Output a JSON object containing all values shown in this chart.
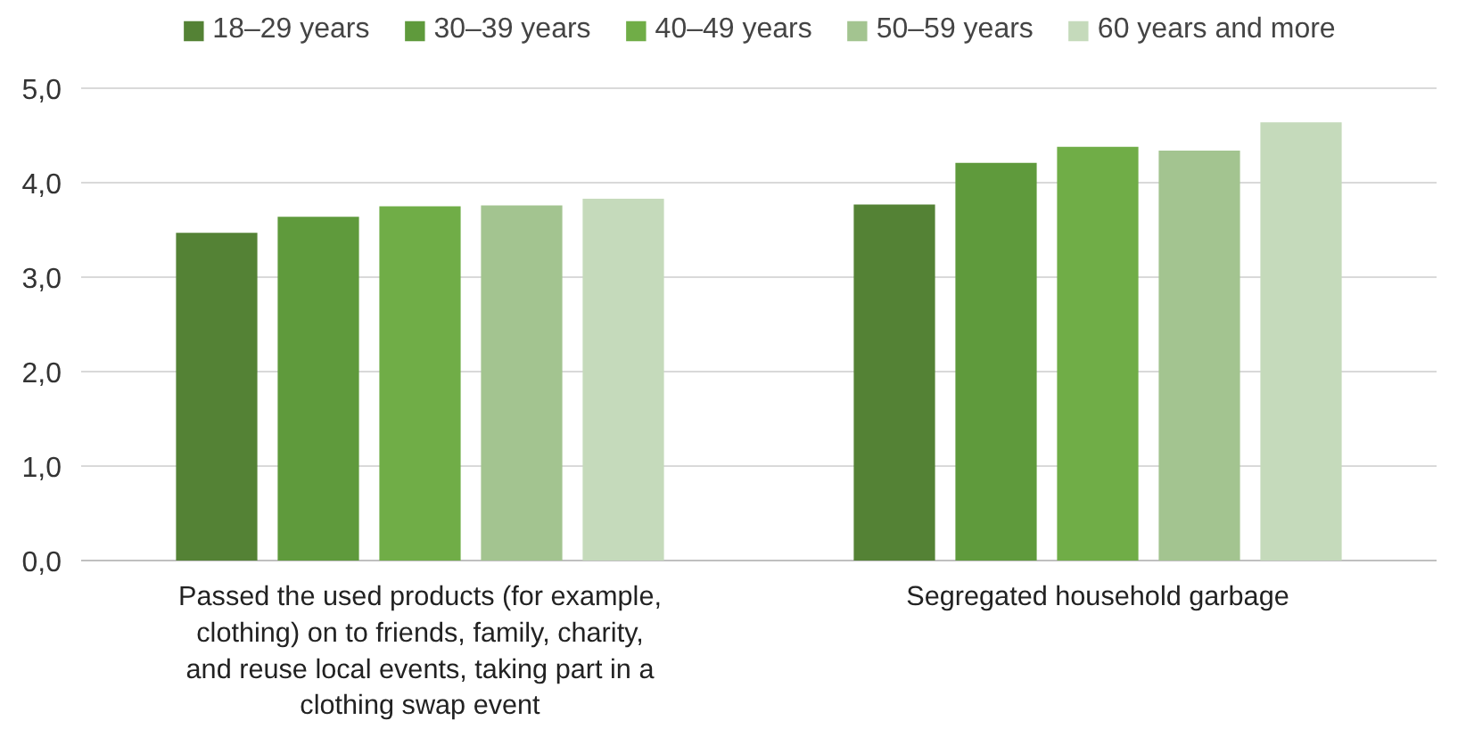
{
  "chart_data": {
    "type": "bar",
    "categories": [
      "Passed the used products (for example, clothing) on to friends, family, charity, and reuse local events, taking part in a clothing swap event",
      "Segregated household garbage"
    ],
    "series": [
      {
        "name": "18–29 years",
        "color": "#548235",
        "values": [
          3.47,
          3.77
        ]
      },
      {
        "name": "30–39 years",
        "color": "#5f9a3c",
        "values": [
          3.64,
          4.21
        ]
      },
      {
        "name": "40–49 years",
        "color": "#70ad47",
        "values": [
          3.75,
          4.38
        ]
      },
      {
        "name": "50–59 years",
        "color": "#a3c490",
        "values": [
          3.76,
          4.34
        ]
      },
      {
        "name": "60 years and more",
        "color": "#c5dabb",
        "values": [
          3.83,
          4.64
        ]
      }
    ],
    "ylim": [
      0,
      5
    ],
    "yticks": [
      {
        "value": 0,
        "label": "0,0"
      },
      {
        "value": 1,
        "label": "1,0"
      },
      {
        "value": 2,
        "label": "2,0"
      },
      {
        "value": 3,
        "label": "3,0"
      },
      {
        "value": 4,
        "label": "4,0"
      },
      {
        "value": 5,
        "label": "5,0"
      }
    ],
    "grid": "y",
    "legend": "top"
  }
}
